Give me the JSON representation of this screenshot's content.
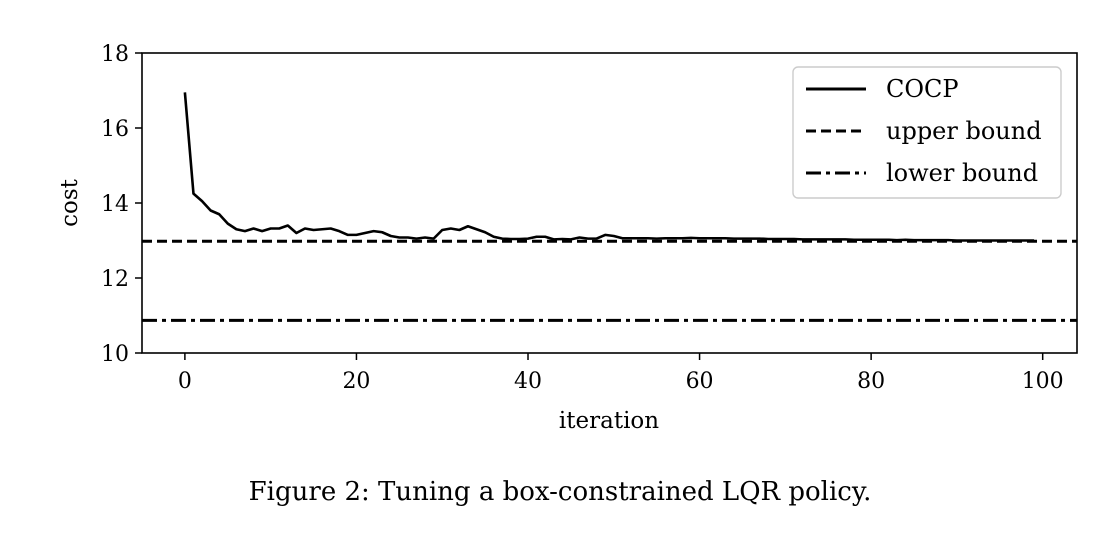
{
  "chart_data": {
    "type": "line",
    "xlabel": "iteration",
    "ylabel": "cost",
    "xlim": [
      -5,
      104
    ],
    "ylim": [
      10,
      18
    ],
    "xticks": [
      0,
      20,
      40,
      60,
      80,
      100
    ],
    "yticks": [
      10,
      12,
      14,
      16,
      18
    ],
    "grid": false,
    "legend_position": "top-right",
    "series": [
      {
        "name": "COCP",
        "style": "solid",
        "color": "#000000",
        "x": [
          0,
          1,
          2,
          3,
          4,
          5,
          6,
          7,
          8,
          9,
          10,
          11,
          12,
          13,
          14,
          15,
          16,
          17,
          18,
          19,
          20,
          21,
          22,
          23,
          24,
          25,
          26,
          27,
          28,
          29,
          30,
          31,
          32,
          33,
          34,
          35,
          36,
          37,
          38,
          39,
          40,
          41,
          42,
          43,
          44,
          45,
          46,
          47,
          48,
          49,
          50,
          51,
          52,
          53,
          54,
          55,
          56,
          57,
          58,
          59,
          60,
          61,
          62,
          63,
          64,
          65,
          66,
          67,
          68,
          69,
          70,
          71,
          72,
          73,
          74,
          75,
          76,
          77,
          78,
          79,
          80,
          81,
          82,
          83,
          84,
          85,
          86,
          87,
          88,
          89,
          90,
          91,
          92,
          93,
          94,
          95,
          96,
          97,
          98,
          99
        ],
        "y": [
          16.95,
          14.25,
          14.05,
          13.8,
          13.7,
          13.45,
          13.3,
          13.25,
          13.32,
          13.25,
          13.32,
          13.32,
          13.4,
          13.2,
          13.32,
          13.28,
          13.3,
          13.32,
          13.25,
          13.15,
          13.15,
          13.2,
          13.25,
          13.22,
          13.12,
          13.08,
          13.08,
          13.05,
          13.08,
          13.05,
          13.28,
          13.32,
          13.28,
          13.38,
          13.3,
          13.22,
          13.1,
          13.05,
          13.04,
          13.04,
          13.05,
          13.1,
          13.1,
          13.03,
          13.04,
          13.03,
          13.08,
          13.05,
          13.05,
          13.15,
          13.12,
          13.06,
          13.06,
          13.06,
          13.06,
          13.05,
          13.06,
          13.06,
          13.06,
          13.07,
          13.06,
          13.06,
          13.06,
          13.06,
          13.05,
          13.05,
          13.05,
          13.05,
          13.04,
          13.04,
          13.04,
          13.04,
          13.03,
          13.03,
          13.03,
          13.03,
          13.03,
          13.03,
          13.02,
          13.02,
          13.02,
          13.02,
          13.02,
          13.01,
          13.02,
          13.01,
          13.01,
          13.01,
          13.01,
          13.01,
          13.0,
          13.0,
          13.0,
          13.0,
          13.0,
          13.0,
          13.0,
          13.0,
          13.0,
          13.0
        ]
      },
      {
        "name": "upper bound",
        "style": "dashed",
        "color": "#000000",
        "y_constant": 12.98
      },
      {
        "name": "lower bound",
        "style": "dashdot",
        "color": "#000000",
        "y_constant": 10.87
      }
    ]
  },
  "caption": "Figure 2: Tuning a box-constrained LQR policy."
}
